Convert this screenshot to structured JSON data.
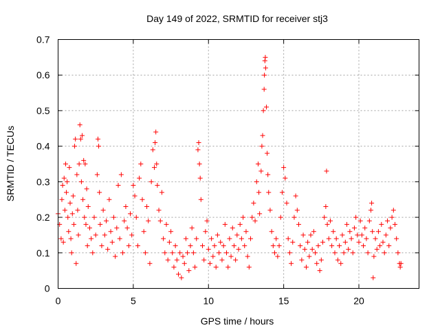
{
  "chart_data": {
    "type": "scatter",
    "title": "Day 149 of 2022, SRMTID for receiver stj3",
    "xlabel": "GPS time / hours",
    "ylabel": "SRMTID / TECUs",
    "xlim": [
      0,
      24
    ],
    "ylim": [
      0,
      0.7
    ],
    "x_ticks": [
      0,
      5,
      10,
      15,
      20
    ],
    "x_tick_labels": [
      "0",
      "5",
      "10",
      "15",
      "20"
    ],
    "y_ticks": [
      0,
      0.1,
      0.2,
      0.3,
      0.4,
      0.5,
      0.6,
      0.7
    ],
    "y_tick_labels": [
      "0",
      "0.1",
      "0.2",
      "0.3",
      "0.4",
      "0.5",
      "0.6",
      "0.7"
    ],
    "grid": true,
    "marker": "+",
    "color": "#ff0000",
    "series": [
      {
        "name": "SRMTID",
        "points": [
          [
            0.0,
            0.21
          ],
          [
            0.1,
            0.18
          ],
          [
            0.2,
            0.14
          ],
          [
            0.25,
            0.25
          ],
          [
            0.3,
            0.29
          ],
          [
            0.35,
            0.13
          ],
          [
            0.4,
            0.31
          ],
          [
            0.45,
            0.22
          ],
          [
            0.5,
            0.35
          ],
          [
            0.55,
            0.27
          ],
          [
            0.6,
            0.3
          ],
          [
            0.65,
            0.2
          ],
          [
            0.7,
            0.16
          ],
          [
            0.75,
            0.34
          ],
          [
            0.8,
            0.24
          ],
          [
            0.85,
            0.14
          ],
          [
            0.9,
            0.1
          ],
          [
            0.95,
            0.21
          ],
          [
            1.0,
            0.26
          ],
          [
            1.05,
            0.18
          ],
          [
            1.1,
            0.4
          ],
          [
            1.15,
            0.42
          ],
          [
            1.2,
            0.07
          ],
          [
            1.25,
            0.32
          ],
          [
            1.3,
            0.22
          ],
          [
            1.35,
            0.15
          ],
          [
            1.4,
            0.35
          ],
          [
            1.45,
            0.46
          ],
          [
            1.5,
            0.42
          ],
          [
            1.55,
            0.3
          ],
          [
            1.6,
            0.43
          ],
          [
            1.65,
            0.25
          ],
          [
            1.7,
            0.36
          ],
          [
            1.75,
            0.2
          ],
          [
            1.8,
            0.35
          ],
          [
            1.85,
            0.18
          ],
          [
            1.9,
            0.28
          ],
          [
            1.95,
            0.12
          ],
          [
            2.0,
            0.23
          ],
          [
            2.1,
            0.17
          ],
          [
            2.2,
            0.14
          ],
          [
            2.3,
            0.1
          ],
          [
            2.4,
            0.2
          ],
          [
            2.5,
            0.15
          ],
          [
            2.6,
            0.32
          ],
          [
            2.65,
            0.42
          ],
          [
            2.7,
            0.4
          ],
          [
            2.75,
            0.27
          ],
          [
            2.8,
            0.18
          ],
          [
            2.9,
            0.12
          ],
          [
            3.0,
            0.22
          ],
          [
            3.1,
            0.15
          ],
          [
            3.2,
            0.19
          ],
          [
            3.3,
            0.11
          ],
          [
            3.4,
            0.25
          ],
          [
            3.5,
            0.16
          ],
          [
            3.6,
            0.13
          ],
          [
            3.7,
            0.2
          ],
          [
            3.8,
            0.09
          ],
          [
            3.9,
            0.17
          ],
          [
            4.0,
            0.29
          ],
          [
            4.1,
            0.14
          ],
          [
            4.2,
            0.32
          ],
          [
            4.3,
            0.1
          ],
          [
            4.4,
            0.19
          ],
          [
            4.5,
            0.23
          ],
          [
            4.6,
            0.17
          ],
          [
            4.7,
            0.12
          ],
          [
            4.8,
            0.21
          ],
          [
            4.9,
            0.15
          ],
          [
            5.0,
            0.29
          ],
          [
            5.1,
            0.26
          ],
          [
            5.2,
            0.2
          ],
          [
            5.3,
            0.12
          ],
          [
            5.4,
            0.31
          ],
          [
            5.5,
            0.35
          ],
          [
            5.6,
            0.25
          ],
          [
            5.7,
            0.16
          ],
          [
            5.8,
            0.1
          ],
          [
            5.9,
            0.23
          ],
          [
            6.0,
            0.19
          ],
          [
            6.1,
            0.07
          ],
          [
            6.2,
            0.3
          ],
          [
            6.3,
            0.39
          ],
          [
            6.4,
            0.34
          ],
          [
            6.45,
            0.41
          ],
          [
            6.5,
            0.44
          ],
          [
            6.55,
            0.35
          ],
          [
            6.6,
            0.29
          ],
          [
            6.7,
            0.22
          ],
          [
            6.8,
            0.19
          ],
          [
            6.9,
            0.27
          ],
          [
            7.0,
            0.14
          ],
          [
            7.1,
            0.1
          ],
          [
            7.2,
            0.18
          ],
          [
            7.3,
            0.08
          ],
          [
            7.4,
            0.13
          ],
          [
            7.5,
            0.16
          ],
          [
            7.6,
            0.1
          ],
          [
            7.7,
            0.06
          ],
          [
            7.8,
            0.12
          ],
          [
            7.9,
            0.08
          ],
          [
            8.0,
            0.04
          ],
          [
            8.1,
            0.1
          ],
          [
            8.2,
            0.03
          ],
          [
            8.3,
            0.09
          ],
          [
            8.4,
            0.07
          ],
          [
            8.5,
            0.14
          ],
          [
            8.6,
            0.1
          ],
          [
            8.7,
            0.05
          ],
          [
            8.8,
            0.12
          ],
          [
            8.9,
            0.17
          ],
          [
            9.0,
            0.1
          ],
          [
            9.1,
            0.06
          ],
          [
            9.2,
            0.14
          ],
          [
            9.3,
            0.39
          ],
          [
            9.35,
            0.41
          ],
          [
            9.4,
            0.35
          ],
          [
            9.45,
            0.31
          ],
          [
            9.5,
            0.25
          ],
          [
            9.6,
            0.12
          ],
          [
            9.7,
            0.08
          ],
          [
            9.8,
            0.16
          ],
          [
            9.9,
            0.19
          ],
          [
            10.0,
            0.11
          ],
          [
            10.1,
            0.07
          ],
          [
            10.2,
            0.14
          ],
          [
            10.3,
            0.09
          ],
          [
            10.4,
            0.12
          ],
          [
            10.5,
            0.06
          ],
          [
            10.6,
            0.15
          ],
          [
            10.7,
            0.1
          ],
          [
            10.8,
            0.13
          ],
          [
            10.9,
            0.08
          ],
          [
            11.0,
            0.12
          ],
          [
            11.1,
            0.18
          ],
          [
            11.2,
            0.1
          ],
          [
            11.3,
            0.06
          ],
          [
            11.4,
            0.14
          ],
          [
            11.5,
            0.09
          ],
          [
            11.6,
            0.17
          ],
          [
            11.7,
            0.12
          ],
          [
            11.8,
            0.08
          ],
          [
            11.9,
            0.15
          ],
          [
            12.0,
            0.11
          ],
          [
            12.1,
            0.18
          ],
          [
            12.2,
            0.14
          ],
          [
            12.3,
            0.2
          ],
          [
            12.4,
            0.12
          ],
          [
            12.5,
            0.16
          ],
          [
            12.6,
            0.09
          ],
          [
            12.7,
            0.06
          ],
          [
            12.8,
            0.14
          ],
          [
            12.9,
            0.2
          ],
          [
            13.0,
            0.24
          ],
          [
            13.1,
            0.19
          ],
          [
            13.2,
            0.3
          ],
          [
            13.3,
            0.35
          ],
          [
            13.35,
            0.27
          ],
          [
            13.4,
            0.21
          ],
          [
            13.5,
            0.33
          ],
          [
            13.55,
            0.4
          ],
          [
            13.6,
            0.43
          ],
          [
            13.65,
            0.5
          ],
          [
            13.7,
            0.56
          ],
          [
            13.72,
            0.6
          ],
          [
            13.75,
            0.64
          ],
          [
            13.78,
            0.65
          ],
          [
            13.8,
            0.62
          ],
          [
            13.85,
            0.51
          ],
          [
            13.9,
            0.38
          ],
          [
            13.95,
            0.32
          ],
          [
            14.0,
            0.27
          ],
          [
            14.1,
            0.22
          ],
          [
            14.2,
            0.16
          ],
          [
            14.3,
            0.12
          ],
          [
            14.4,
            0.1
          ],
          [
            14.5,
            0.14
          ],
          [
            14.6,
            0.09
          ],
          [
            14.7,
            0.12
          ],
          [
            14.8,
            0.2
          ],
          [
            14.9,
            0.27
          ],
          [
            15.0,
            0.34
          ],
          [
            15.1,
            0.31
          ],
          [
            15.2,
            0.24
          ],
          [
            15.3,
            0.14
          ],
          [
            15.4,
            0.1
          ],
          [
            15.5,
            0.07
          ],
          [
            15.6,
            0.13
          ],
          [
            15.7,
            0.2
          ],
          [
            15.8,
            0.26
          ],
          [
            15.9,
            0.22
          ],
          [
            16.0,
            0.18
          ],
          [
            16.1,
            0.12
          ],
          [
            16.2,
            0.08
          ],
          [
            16.3,
            0.15
          ],
          [
            16.4,
            0.11
          ],
          [
            16.5,
            0.06
          ],
          [
            16.6,
            0.13
          ],
          [
            16.7,
            0.09
          ],
          [
            16.8,
            0.15
          ],
          [
            16.9,
            0.11
          ],
          [
            17.0,
            0.16
          ],
          [
            17.1,
            0.1
          ],
          [
            17.2,
            0.07
          ],
          [
            17.3,
            0.12
          ],
          [
            17.4,
            0.05
          ],
          [
            17.5,
            0.08
          ],
          [
            17.6,
            0.13
          ],
          [
            17.7,
            0.2
          ],
          [
            17.8,
            0.23
          ],
          [
            17.85,
            0.33
          ],
          [
            17.9,
            0.18
          ],
          [
            18.0,
            0.14
          ],
          [
            18.1,
            0.19
          ],
          [
            18.2,
            0.12
          ],
          [
            18.3,
            0.16
          ],
          [
            18.4,
            0.1
          ],
          [
            18.5,
            0.14
          ],
          [
            18.6,
            0.08
          ],
          [
            18.7,
            0.12
          ],
          [
            18.8,
            0.07
          ],
          [
            18.9,
            0.15
          ],
          [
            19.0,
            0.1
          ],
          [
            19.1,
            0.13
          ],
          [
            19.2,
            0.18
          ],
          [
            19.3,
            0.11
          ],
          [
            19.4,
            0.16
          ],
          [
            19.5,
            0.14
          ],
          [
            19.6,
            0.1
          ],
          [
            19.7,
            0.17
          ],
          [
            19.8,
            0.2
          ],
          [
            19.9,
            0.15
          ],
          [
            20.0,
            0.13
          ],
          [
            20.1,
            0.19
          ],
          [
            20.2,
            0.15
          ],
          [
            20.3,
            0.12
          ],
          [
            20.4,
            0.17
          ],
          [
            20.5,
            0.14
          ],
          [
            20.6,
            0.1
          ],
          [
            20.7,
            0.19
          ],
          [
            20.8,
            0.22
          ],
          [
            20.85,
            0.24
          ],
          [
            20.9,
            0.16
          ],
          [
            20.95,
            0.03
          ],
          [
            21.0,
            0.09
          ],
          [
            21.1,
            0.14
          ],
          [
            21.2,
            0.11
          ],
          [
            21.3,
            0.16
          ],
          [
            21.4,
            0.12
          ],
          [
            21.5,
            0.18
          ],
          [
            21.6,
            0.13
          ],
          [
            21.7,
            0.1
          ],
          [
            21.8,
            0.15
          ],
          [
            21.9,
            0.19
          ],
          [
            22.0,
            0.12
          ],
          [
            22.1,
            0.17
          ],
          [
            22.2,
            0.2
          ],
          [
            22.3,
            0.22
          ],
          [
            22.4,
            0.18
          ],
          [
            22.5,
            0.14
          ],
          [
            22.6,
            0.1
          ],
          [
            22.7,
            0.07
          ],
          [
            22.75,
            0.06
          ],
          [
            22.8,
            0.07
          ]
        ]
      }
    ]
  }
}
